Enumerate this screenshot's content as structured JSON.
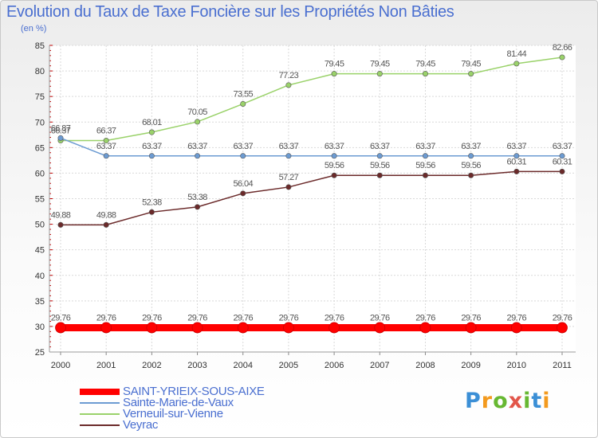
{
  "chart_data": {
    "type": "line",
    "title": "Evolution du Taux de Taxe Foncière sur les Propriétés Non Bâties",
    "ylabel": "(en %)",
    "xlabel": "",
    "categories": [
      "2000",
      "2001",
      "2002",
      "2003",
      "2004",
      "2005",
      "2006",
      "2007",
      "2008",
      "2009",
      "2010",
      "2011"
    ],
    "ylim": [
      25,
      85
    ],
    "yticks": [
      25,
      30,
      35,
      40,
      45,
      50,
      55,
      60,
      65,
      70,
      75,
      80,
      85
    ],
    "grid": true,
    "legend_position": "bottom-left",
    "series": [
      {
        "name": "SAINT-YRIEIX-SOUS-AIXE",
        "color": "#ff0000",
        "values": [
          29.76,
          29.76,
          29.76,
          29.76,
          29.76,
          29.76,
          29.76,
          29.76,
          29.76,
          29.76,
          29.76,
          29.76
        ],
        "labels": [
          "29.76",
          "29.76",
          "29.76",
          "29.76",
          "29.76",
          "29.76",
          "29.76",
          "29.76",
          "29.76",
          "29.76",
          "29.76",
          "29.76"
        ]
      },
      {
        "name": "Sainte-Marie-de-Vaux",
        "color": "#6c9bd2",
        "values": [
          66.87,
          63.37,
          63.37,
          63.37,
          63.37,
          63.37,
          63.37,
          63.37,
          63.37,
          63.37,
          63.37,
          63.37
        ],
        "labels": [
          "66.87",
          "63.37",
          "63.37",
          "63.37",
          "63.37",
          "63.37",
          "63.37",
          "63.37",
          "63.37",
          "63.37",
          "63.37",
          "63.37"
        ]
      },
      {
        "name": "Verneuil-sur-Vienne",
        "color": "#9ad26a",
        "values": [
          66.37,
          66.37,
          68.01,
          70.05,
          73.55,
          77.23,
          79.45,
          79.45,
          79.45,
          79.45,
          81.44,
          82.66
        ],
        "labels": [
          "66.37",
          "66.37",
          "68.01",
          "70.05",
          "73.55",
          "77.23",
          "79.45",
          "79.45",
          "79.45",
          "79.45",
          "81.44",
          "82.66"
        ]
      },
      {
        "name": "Veyrac",
        "color": "#6b2a2a",
        "values": [
          49.88,
          49.88,
          52.38,
          53.38,
          56.04,
          57.27,
          59.56,
          59.56,
          59.56,
          59.56,
          60.31,
          60.31
        ],
        "labels": [
          "49.88",
          "49.88",
          "52.38",
          "53.38",
          "56.04",
          "57.27",
          "59.56",
          "59.56",
          "59.56",
          "59.56",
          "60.31",
          "60.31"
        ]
      }
    ]
  },
  "legend": {
    "items": [
      {
        "label": "SAINT-YRIEIX-SOUS-AIXE",
        "color": "#ff0000"
      },
      {
        "label": "Sainte-Marie-de-Vaux",
        "color": "#6c9bd2"
      },
      {
        "label": "Verneuil-sur-Vienne",
        "color": "#9ad26a"
      },
      {
        "label": "Veyrac",
        "color": "#6b2a2a"
      }
    ]
  },
  "logo": {
    "letters": [
      "P",
      "r",
      "o",
      "x",
      "i",
      "t",
      "i"
    ],
    "colors": [
      "#3b8fd6",
      "#f39a1e",
      "#67b832",
      "#e2564a",
      "#67b832",
      "#3b8fd6",
      "#f39a1e"
    ]
  }
}
